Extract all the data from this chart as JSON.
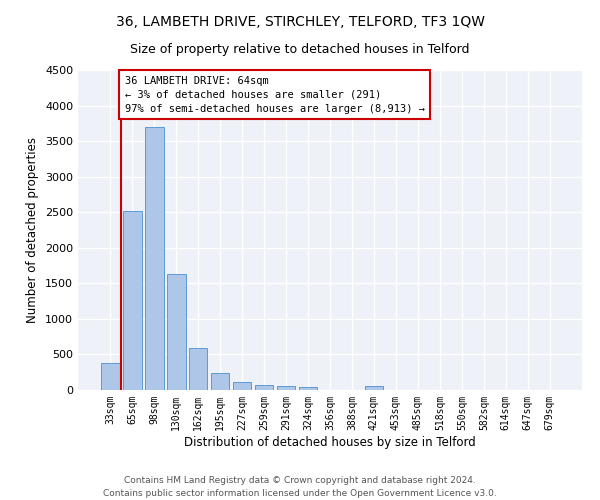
{
  "title": "36, LAMBETH DRIVE, STIRCHLEY, TELFORD, TF3 1QW",
  "subtitle": "Size of property relative to detached houses in Telford",
  "xlabel": "Distribution of detached houses by size in Telford",
  "ylabel": "Number of detached properties",
  "categories": [
    "33sqm",
    "65sqm",
    "98sqm",
    "130sqm",
    "162sqm",
    "195sqm",
    "227sqm",
    "259sqm",
    "291sqm",
    "324sqm",
    "356sqm",
    "388sqm",
    "421sqm",
    "453sqm",
    "485sqm",
    "518sqm",
    "550sqm",
    "582sqm",
    "614sqm",
    "647sqm",
    "679sqm"
  ],
  "values": [
    380,
    2520,
    3700,
    1625,
    595,
    240,
    115,
    65,
    50,
    45,
    0,
    0,
    55,
    0,
    0,
    0,
    0,
    0,
    0,
    0,
    0
  ],
  "bar_color": "#aec6e8",
  "bar_edge_color": "#5b9bd5",
  "vline_x_index": 0.5,
  "annotation_text": "36 LAMBETH DRIVE: 64sqm\n← 3% of detached houses are smaller (291)\n97% of semi-detached houses are larger (8,913) →",
  "annotation_box_color": "#ffffff",
  "annotation_box_edge": "#cc0000",
  "vline_color": "#cc0000",
  "ylim": [
    0,
    4500
  ],
  "yticks": [
    0,
    500,
    1000,
    1500,
    2000,
    2500,
    3000,
    3500,
    4000,
    4500
  ],
  "bg_color": "#eef2f8",
  "footer": "Contains HM Land Registry data © Crown copyright and database right 2024.\nContains public sector information licensed under the Open Government Licence v3.0.",
  "title_fontsize": 10,
  "subtitle_fontsize": 9,
  "xlabel_fontsize": 8.5,
  "ylabel_fontsize": 8.5,
  "footer_fontsize": 6.5
}
